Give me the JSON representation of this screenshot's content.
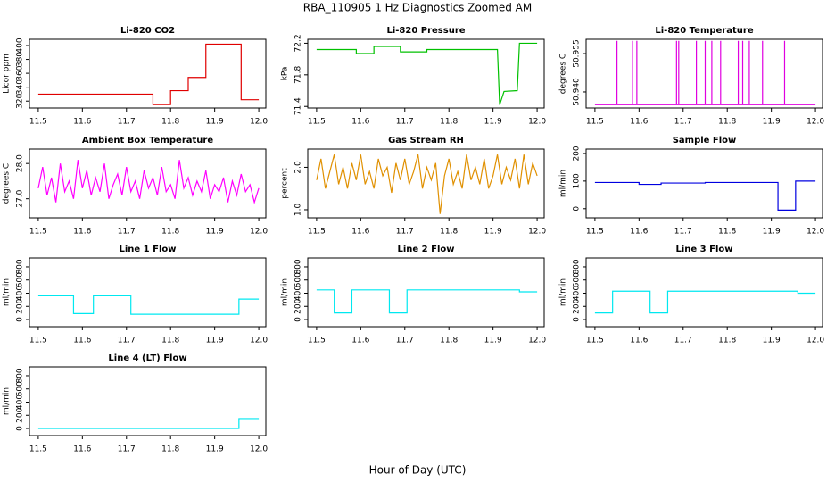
{
  "title": "RBA_110905  1 Hz Diagnostics Zoomed AM",
  "xlabel": "Hour of Day (UTC)",
  "chart_data": [
    {
      "type": "line",
      "title": "Li-820 CO2",
      "ylabel": "Licor ppm",
      "color": "#e00000",
      "x": [
        11.5,
        11.76,
        11.76,
        11.8,
        11.8,
        11.84,
        11.84,
        11.88,
        11.88,
        11.96,
        11.96,
        12.0
      ],
      "values": [
        330,
        330,
        315,
        315,
        335,
        335,
        354,
        354,
        402,
        402,
        322,
        322
      ],
      "xlim": [
        11.48,
        12.016
      ],
      "xticks": [
        11.5,
        11.6,
        11.7,
        11.8,
        11.9,
        {
          "value": 12,
          "label": "12.0"
        }
      ],
      "ylim": [
        310,
        409
      ],
      "yticks": [
        320,
        340,
        360,
        380,
        400
      ]
    },
    {
      "type": "line",
      "title": "Li-820 Pressure",
      "ylabel": "kPa",
      "color": "#00c000",
      "x": [
        11.5,
        11.59,
        11.59,
        11.63,
        11.63,
        11.69,
        11.69,
        11.75,
        11.75,
        11.91,
        11.915,
        11.925,
        11.955,
        11.96,
        12.0
      ],
      "values": [
        72.12,
        72.12,
        72.07,
        72.07,
        72.16,
        72.16,
        72.09,
        72.09,
        72.12,
        72.12,
        71.42,
        71.59,
        71.6,
        72.2,
        72.2
      ],
      "xlim": [
        11.48,
        12.016
      ],
      "xticks": [
        11.5,
        11.6,
        11.7,
        11.8,
        11.9,
        {
          "value": 12,
          "label": "12.0"
        }
      ],
      "ylim": [
        71.38,
        72.25
      ],
      "yticks": [
        71.4,
        71.8,
        72.2
      ]
    },
    {
      "type": "line",
      "title": "Li-820 Temperature",
      "ylabel": "degrees C",
      "color": "#e000e0",
      "x": [
        11.5,
        11.55,
        11.55,
        11.55,
        11.585,
        11.585,
        11.585,
        11.595,
        11.595,
        11.595,
        11.685,
        11.685,
        11.685,
        11.69,
        11.69,
        11.69,
        11.73,
        11.73,
        11.73,
        11.75,
        11.75,
        11.75,
        11.765,
        11.765,
        11.765,
        11.785,
        11.785,
        11.785,
        11.825,
        11.825,
        11.825,
        11.835,
        11.835,
        11.835,
        11.85,
        11.85,
        11.85,
        11.88,
        11.88,
        11.88,
        11.93,
        11.93,
        11.93,
        12.0
      ],
      "values": [
        50.935,
        50.935,
        50.96,
        50.935,
        50.935,
        50.96,
        50.935,
        50.935,
        50.96,
        50.935,
        50.935,
        50.96,
        50.935,
        50.935,
        50.96,
        50.935,
        50.935,
        50.96,
        50.935,
        50.935,
        50.96,
        50.935,
        50.935,
        50.96,
        50.935,
        50.935,
        50.96,
        50.935,
        50.935,
        50.96,
        50.935,
        50.935,
        50.96,
        50.935,
        50.935,
        50.96,
        50.935,
        50.935,
        50.96,
        50.935,
        50.935,
        50.96,
        50.935,
        50.935
      ],
      "xlim": [
        11.48,
        12.016
      ],
      "xticks": [
        11.5,
        11.6,
        11.7,
        11.8,
        11.9,
        {
          "value": 12,
          "label": "12.0"
        }
      ],
      "ylim": [
        50.9337,
        50.9606
      ],
      "yticks": [
        {
          "value": 50.94,
          "label": "50.940"
        },
        {
          "value": 50.955,
          "label": "50.955"
        }
      ]
    },
    {
      "type": "line",
      "title": "Ambient Box Temperature",
      "ylabel": "degrees C",
      "color": "#ff00ff",
      "x": [
        11.5,
        11.51,
        11.52,
        11.53,
        11.54,
        11.55,
        11.56,
        11.57,
        11.58,
        11.59,
        11.6,
        11.61,
        11.62,
        11.63,
        11.64,
        11.65,
        11.66,
        11.67,
        11.68,
        11.69,
        11.7,
        11.71,
        11.72,
        11.73,
        11.74,
        11.75,
        11.76,
        11.77,
        11.78,
        11.79,
        11.8,
        11.81,
        11.82,
        11.83,
        11.84,
        11.85,
        11.86,
        11.87,
        11.88,
        11.89,
        11.9,
        11.91,
        11.92,
        11.93,
        11.94,
        11.95,
        11.96,
        11.97,
        11.98,
        11.99,
        12.0
      ],
      "values": [
        27.3,
        27.9,
        27.1,
        27.6,
        26.9,
        28.0,
        27.2,
        27.5,
        27.0,
        28.1,
        27.3,
        27.8,
        27.1,
        27.6,
        27.2,
        28.0,
        27.0,
        27.4,
        27.7,
        27.1,
        27.9,
        27.2,
        27.5,
        27.0,
        27.8,
        27.3,
        27.6,
        27.1,
        27.9,
        27.2,
        27.4,
        27.0,
        28.1,
        27.3,
        27.6,
        27.1,
        27.5,
        27.2,
        27.8,
        27.0,
        27.4,
        27.2,
        27.6,
        26.9,
        27.5,
        27.1,
        27.7,
        27.2,
        27.4,
        26.9,
        27.3
      ],
      "xlim": [
        11.48,
        12.016
      ],
      "xticks": [
        11.5,
        11.6,
        11.7,
        11.8,
        11.9,
        {
          "value": 12,
          "label": "12.0"
        }
      ],
      "ylim": [
        26.46,
        28.41
      ],
      "yticks": [
        {
          "value": 27,
          "label": "27.0"
        },
        {
          "value": 28,
          "label": "28.0"
        }
      ]
    },
    {
      "type": "line",
      "title": "Gas Stream RH",
      "ylabel": "percent",
      "color": "#e09000",
      "x": [
        11.5,
        11.51,
        11.52,
        11.53,
        11.54,
        11.55,
        11.56,
        11.57,
        11.58,
        11.59,
        11.6,
        11.61,
        11.62,
        11.63,
        11.64,
        11.65,
        11.66,
        11.67,
        11.68,
        11.69,
        11.7,
        11.71,
        11.72,
        11.73,
        11.74,
        11.75,
        11.76,
        11.77,
        11.78,
        11.79,
        11.8,
        11.81,
        11.82,
        11.83,
        11.84,
        11.85,
        11.86,
        11.87,
        11.88,
        11.89,
        11.9,
        11.91,
        11.92,
        11.93,
        11.94,
        11.95,
        11.96,
        11.97,
        11.98,
        11.99,
        12.0
      ],
      "values": [
        1.7,
        2.2,
        1.5,
        1.9,
        2.3,
        1.6,
        2.0,
        1.5,
        2.1,
        1.7,
        2.3,
        1.6,
        1.9,
        1.5,
        2.2,
        1.8,
        2.0,
        1.4,
        2.1,
        1.7,
        2.2,
        1.6,
        1.9,
        2.3,
        1.5,
        2.0,
        1.7,
        2.1,
        0.9,
        1.8,
        2.2,
        1.6,
        1.9,
        1.5,
        2.3,
        1.7,
        2.0,
        1.6,
        2.2,
        1.5,
        1.8,
        2.3,
        1.6,
        2.0,
        1.7,
        2.2,
        1.5,
        2.3,
        1.6,
        2.1,
        1.8
      ],
      "xlim": [
        11.48,
        12.016
      ],
      "xticks": [
        11.5,
        11.6,
        11.7,
        11.8,
        11.9,
        {
          "value": 12,
          "label": "12.0"
        }
      ],
      "ylim": [
        0.81,
        2.43
      ],
      "yticks": [
        {
          "value": 1,
          "label": "1.0"
        },
        {
          "value": 2,
          "label": "2.0"
        }
      ]
    },
    {
      "type": "line",
      "title": "Sample Flow",
      "ylabel": "ml/min",
      "color": "#0000e0",
      "x": [
        11.5,
        11.6,
        11.6,
        11.65,
        11.65,
        11.75,
        11.75,
        11.915,
        11.915,
        11.955,
        11.955,
        12.0
      ],
      "values": [
        95,
        95,
        88,
        88,
        93,
        93,
        95,
        95,
        -5,
        -5,
        100,
        100
      ],
      "xlim": [
        11.48,
        12.016
      ],
      "xticks": [
        11.5,
        11.6,
        11.7,
        11.8,
        11.9,
        {
          "value": 12,
          "label": "12.0"
        }
      ],
      "ylim": [
        -33,
        216
      ],
      "yticks": [
        0,
        100,
        200
      ]
    },
    {
      "type": "line",
      "title": "Line 1 Flow",
      "ylabel": "ml/min",
      "color": "#00e8f0",
      "x": [
        11.5,
        11.58,
        11.58,
        11.625,
        11.625,
        11.71,
        11.71,
        11.955,
        11.955,
        12.0
      ],
      "values": [
        360,
        360,
        90,
        90,
        360,
        360,
        80,
        80,
        310,
        310
      ],
      "xlim": [
        11.48,
        12.016
      ],
      "xticks": [
        11.5,
        11.6,
        11.7,
        11.8,
        11.9,
        {
          "value": 12,
          "label": "12.0"
        }
      ],
      "ylim": [
        -108,
        935
      ],
      "yticks": [
        0,
        200,
        400,
        600,
        800
      ]
    },
    {
      "type": "line",
      "title": "Line 2 Flow",
      "ylabel": "ml/min",
      "color": "#00e8f0",
      "x": [
        11.5,
        11.54,
        11.54,
        11.58,
        11.58,
        11.665,
        11.665,
        11.705,
        11.705,
        11.96,
        11.96,
        12.0
      ],
      "values": [
        450,
        450,
        100,
        100,
        450,
        450,
        100,
        100,
        450,
        450,
        420,
        420
      ],
      "xlim": [
        11.48,
        12.016
      ],
      "xticks": [
        11.5,
        11.6,
        11.7,
        11.8,
        11.9,
        {
          "value": 12,
          "label": "12.0"
        }
      ],
      "ylim": [
        -108,
        935
      ],
      "yticks": [
        0,
        200,
        400,
        600,
        800
      ]
    },
    {
      "type": "line",
      "title": "Line 3 Flow",
      "ylabel": "ml/min",
      "color": "#00e8f0",
      "x": [
        11.5,
        11.54,
        11.54,
        11.625,
        11.625,
        11.665,
        11.665,
        11.96,
        11.96,
        12.0
      ],
      "values": [
        100,
        100,
        430,
        430,
        100,
        100,
        430,
        430,
        400,
        400
      ],
      "xlim": [
        11.48,
        12.016
      ],
      "xticks": [
        11.5,
        11.6,
        11.7,
        11.8,
        11.9,
        {
          "value": 12,
          "label": "12.0"
        }
      ],
      "ylim": [
        -108,
        935
      ],
      "yticks": [
        0,
        200,
        400,
        600,
        800
      ]
    },
    {
      "type": "line",
      "title": "Line 4 (LT) Flow",
      "ylabel": "ml/min",
      "color": "#00e8f0",
      "x": [
        11.5,
        11.955,
        11.955,
        12.0
      ],
      "values": [
        0,
        0,
        150,
        150
      ],
      "xlim": [
        11.48,
        12.016
      ],
      "xticks": [
        11.5,
        11.6,
        11.7,
        11.8,
        11.9,
        {
          "value": 12,
          "label": "12.0"
        }
      ],
      "ylim": [
        -108,
        935
      ],
      "yticks": [
        0,
        200,
        400,
        600,
        800
      ]
    }
  ]
}
